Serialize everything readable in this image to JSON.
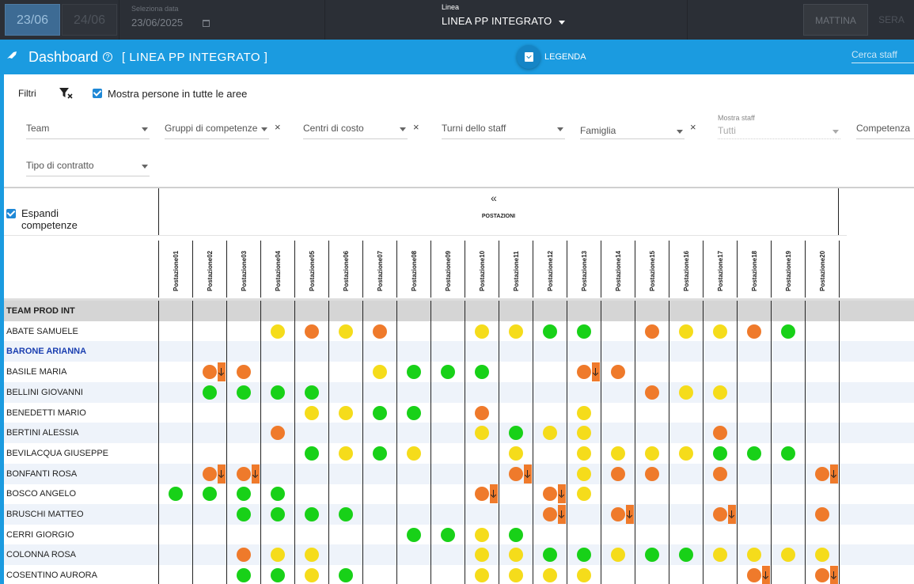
{
  "topbar": {
    "day_active": "23/06",
    "day_next": "24/06",
    "date_label": "Seleziona data",
    "date_value": "23/06/2025",
    "linea_label": "Linea",
    "linea_value": "LINEA PP INTEGRATO",
    "shift_morning": "MATTINA",
    "shift_evening": "SERA"
  },
  "header": {
    "title": "Dashboard",
    "line_tag": "[ LINEA PP INTEGRATO ]",
    "legend_label": "LEGENDA",
    "search_placeholder": "Cerca staff"
  },
  "filters": {
    "label": "Filtri",
    "show_all_areas": "Mostra persone in tutte le aree",
    "team": "Team",
    "gruppi": "Gruppi di competenze",
    "centri": "Centri di costo",
    "turni": "Turni dello staff",
    "famiglia": "Famiglia",
    "mostra_staff_label": "Mostra staff",
    "mostra_staff_value": "Tutti",
    "competenza": "Competenza",
    "tipo_contratto": "Tipo di contratto",
    "clear_symbol": "×"
  },
  "grid": {
    "expand_label": "Espandi competenze",
    "collapse_symbol": "«",
    "group_header": "POSTAZIONI",
    "columns": [
      "Postazione01",
      "Postazione02",
      "Postazione03",
      "Postazione04",
      "Postazione05",
      "Postazione06",
      "Postazione07",
      "Postazione08",
      "Postazione09",
      "Postazione10",
      "Postazione11",
      "Postazione12",
      "Postazione13",
      "Postazione14",
      "Postazione15",
      "Postazione16",
      "Postazione17",
      "Postazione18",
      "Postazione19",
      "Postazione20"
    ],
    "colors": {
      "yellow": "#f5dc1b",
      "orange": "#ef7a2b",
      "green": "#18d118"
    },
    "rows": [
      {
        "name": "TEAM PROD INT",
        "type": "team",
        "cells": "...................."
      },
      {
        "name": "ABATE SAMUELE",
        "cells": "...YOYO..YYGG.OYYOG."
      },
      {
        "name": "BARONE ARIANNA",
        "type": "highlight",
        "cells": "...................."
      },
      {
        "name": "BASILE MARIA",
        "cells": ".aO...YGGG..aO......"
      },
      {
        "name": "BELLINI GIOVANNI",
        "cells": ".GGGG.........OYY..."
      },
      {
        "name": "BENEDETTI MARIO",
        "cells": "....YYGG.O..Y......."
      },
      {
        "name": "BERTINI ALESSIA",
        "cells": "...O.....YGYY...O..."
      },
      {
        "name": "BEVILACQUA GIUSEPPE",
        "cells": "....GYGY..Y.YYYYGGG."
      },
      {
        "name": "BONFANTI ROSA",
        "cells": ".aa.......a.YOO.O..a"
      },
      {
        "name": "BOSCO ANGELO",
        "cells": "GGGG.....a.aY......."
      },
      {
        "name": "BRUSCHI MATTEO",
        "cells": "..GGGG.....a.a..a..O"
      },
      {
        "name": "CERRI GIORGIO",
        "cells": ".......GGYG........."
      },
      {
        "name": "COLONNA ROSA",
        "cells": "..OYY....YYGGYGGYYYY"
      },
      {
        "name": "COSENTINO AURORA",
        "cells": "..GGYG...YYYY....a.a"
      }
    ]
  }
}
